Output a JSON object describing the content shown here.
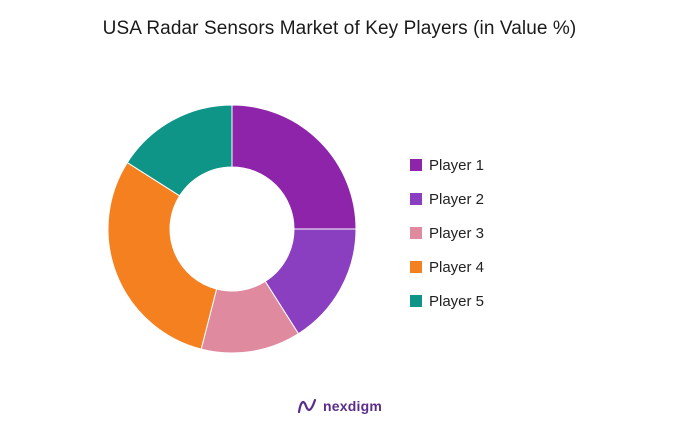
{
  "chart_data": {
    "type": "pie",
    "donut": true,
    "title": "USA Radar Sensors Market of Key Players (in Value %)",
    "categories": [
      "Player 1",
      "Player 2",
      "Player 3",
      "Player 4",
      "Player 5"
    ],
    "values": [
      25,
      16,
      13,
      30,
      16
    ],
    "colors": [
      "#8e24aa",
      "#8a3fc0",
      "#e08aa0",
      "#f58020",
      "#0f9488"
    ],
    "legend_position": "right"
  },
  "branding": {
    "logo_icon": "nexdigm-logo-icon",
    "logo_text": "nexdigm",
    "logo_color": "#5b2d8a"
  }
}
